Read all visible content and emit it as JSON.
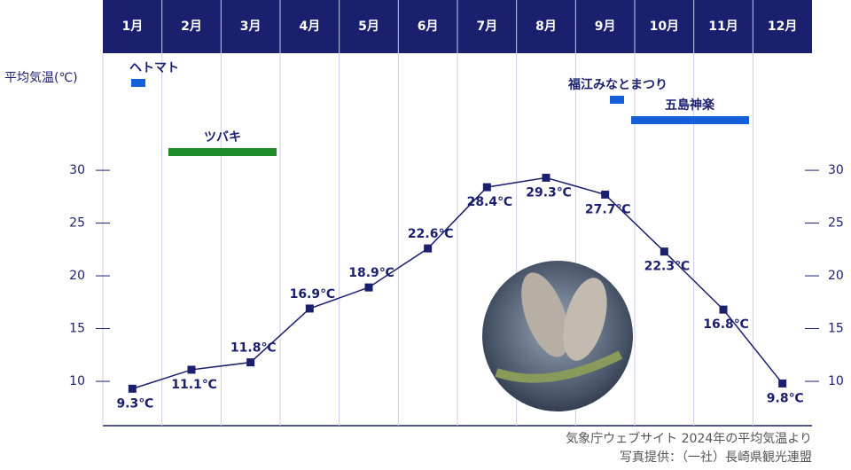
{
  "chart_data": {
    "type": "line",
    "y_axis_label": "平均気温(℃)",
    "categories": [
      "1月",
      "2月",
      "3月",
      "4月",
      "5月",
      "6月",
      "7月",
      "8月",
      "9月",
      "10月",
      "11月",
      "12月"
    ],
    "series": [
      {
        "name": "平均気温",
        "color": "#1a1f6e",
        "values": [
          9.3,
          11.1,
          11.8,
          16.9,
          18.9,
          22.6,
          28.4,
          29.3,
          27.7,
          22.3,
          16.8,
          9.8
        ],
        "value_labels": [
          "9.3℃",
          "11.1℃",
          "11.8℃",
          "16.9℃",
          "18.9℃",
          "22.6℃",
          "28.4℃",
          "29.3℃",
          "27.7℃",
          "22.3℃",
          "16.8℃",
          "9.8℃"
        ]
      }
    ],
    "ylim": [
      5.8,
      41.1
    ],
    "yticks": [
      10,
      15,
      20,
      25,
      30
    ],
    "events": [
      "ヘトマト",
      "ツバキ",
      "福江みなとまつり",
      "五島神楽"
    ],
    "source": [
      "気象庁ウェブサイト 2024年の平均気温より",
      "写真提供：（一社）長崎県観光連盟"
    ]
  }
}
